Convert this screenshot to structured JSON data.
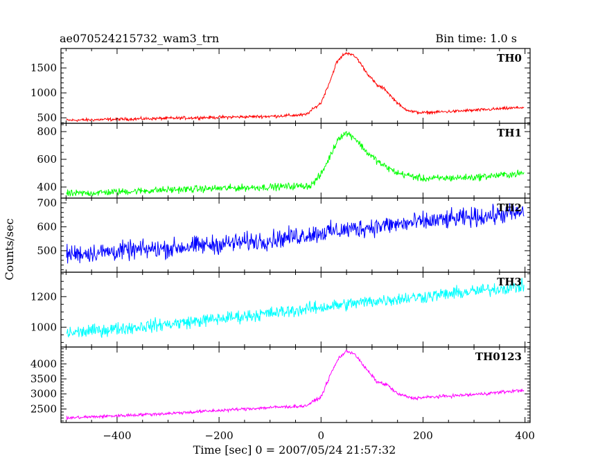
{
  "header": {
    "title": "ae070524215732_wam3_trn",
    "bin_time": "Bin time: 1.0 s"
  },
  "chart_data": {
    "type": "line",
    "xlabel": "Time [sec] 0 = 2007/05/24 21:57:32",
    "ylabel": "Counts/sec",
    "xlim": [
      -510,
      410
    ],
    "x_ticks": [
      -400,
      -200,
      0,
      200,
      400
    ],
    "x_minor_step": 50,
    "x_tick_labels": [
      "−400",
      "−200",
      "0",
      "200",
      "400"
    ],
    "grid": false,
    "panels": [
      {
        "name": "TH0",
        "color": "#ff0000",
        "ylim": [
          390,
          1890
        ],
        "y_ticks": [
          500,
          1000,
          1500
        ],
        "y_minor_step": 100,
        "y_tick_labels": [
          "500",
          "1000",
          "1500"
        ],
        "curve_x": [
          -500,
          -300,
          -100,
          -30,
          0,
          20,
          30,
          45,
          55,
          70,
          90,
          110,
          125,
          140,
          160,
          180,
          200,
          300,
          400
        ],
        "curve_y": [
          450,
          490,
          530,
          560,
          800,
          1300,
          1600,
          1780,
          1800,
          1700,
          1400,
          1150,
          1080,
          900,
          700,
          620,
          600,
          650,
          710
        ],
        "noise": 22
      },
      {
        "name": "TH1",
        "color": "#00ff00",
        "ylim": [
          320,
          860
        ],
        "y_ticks": [
          400,
          600,
          800
        ],
        "y_minor_step": 50,
        "y_tick_labels": [
          "400",
          "600",
          "800"
        ],
        "curve_x": [
          -500,
          -300,
          -100,
          -20,
          0,
          20,
          35,
          50,
          65,
          90,
          120,
          150,
          200,
          300,
          400
        ],
        "curve_y": [
          350,
          380,
          400,
          410,
          490,
          640,
          760,
          790,
          760,
          650,
          560,
          500,
          460,
          470,
          500
        ],
        "noise": 18
      },
      {
        "name": "TH2",
        "color": "#0000ff",
        "ylim": [
          410,
          720
        ],
        "y_ticks": [
          500,
          600,
          700
        ],
        "y_minor_step": 20,
        "y_tick_labels": [
          "500",
          "600",
          "700"
        ],
        "curve_x": [
          -500,
          -300,
          -100,
          0,
          100,
          200,
          300,
          400
        ],
        "curve_y": [
          485,
          510,
          545,
          575,
          600,
          620,
          640,
          660
        ],
        "noise": 28
      },
      {
        "name": "TH3",
        "color": "#00ffff",
        "ylim": [
          870,
          1360
        ],
        "y_ticks": [
          1000,
          1200
        ],
        "y_minor_step": 50,
        "y_tick_labels": [
          "1000",
          "1200"
        ],
        "curve_x": [
          -500,
          -300,
          -100,
          0,
          100,
          200,
          300,
          400
        ],
        "curve_y": [
          960,
          1020,
          1090,
          1130,
          1170,
          1200,
          1235,
          1270
        ],
        "noise": 30
      },
      {
        "name": "TH0123",
        "color": "#ff00ff",
        "ylim": [
          2050,
          4560
        ],
        "y_ticks": [
          2500,
          3000,
          3500,
          4000
        ],
        "y_minor_step": 100,
        "y_tick_labels": [
          "2500",
          "3000",
          "3500",
          "4000"
        ],
        "curve_x": [
          -500,
          -300,
          -100,
          -30,
          0,
          20,
          35,
          50,
          65,
          85,
          110,
          130,
          150,
          180,
          200,
          300,
          400
        ],
        "curve_y": [
          2200,
          2350,
          2550,
          2600,
          2900,
          3700,
          4200,
          4420,
          4350,
          3900,
          3400,
          3300,
          3000,
          2860,
          2880,
          2980,
          3130
        ],
        "noise": 38
      }
    ]
  }
}
